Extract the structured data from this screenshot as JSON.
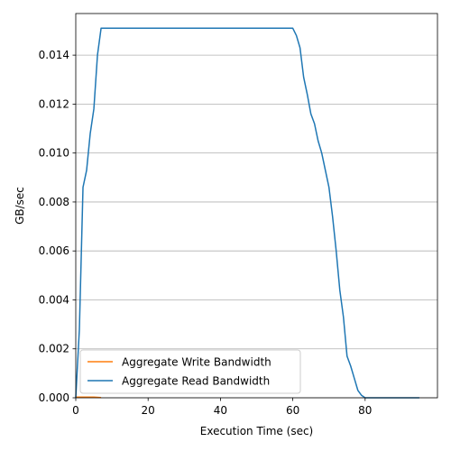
{
  "chart_data": {
    "type": "line",
    "title": "",
    "xlabel": "Execution Time (sec)",
    "ylabel": "GB/sec",
    "xlim": [
      0,
      100
    ],
    "ylim": [
      0,
      0.0157
    ],
    "xticks": [
      0,
      20,
      40,
      60,
      80
    ],
    "yticks": [
      0.0,
      0.002,
      0.004,
      0.006,
      0.008,
      0.01,
      0.012,
      0.014
    ],
    "ytick_labels": [
      "0.000",
      "0.002",
      "0.004",
      "0.006",
      "0.008",
      "0.010",
      "0.012",
      "0.014"
    ],
    "grid": "y-axis",
    "legend_position": "lower-left",
    "series": [
      {
        "name": "Aggregate Write Bandwidth",
        "color": "#ff7f0e",
        "x": [
          0,
          1,
          2,
          3,
          4,
          5,
          6,
          7
        ],
        "y": [
          3e-05,
          3e-05,
          3e-05,
          3e-05,
          3e-05,
          3e-05,
          2e-05,
          1e-05
        ]
      },
      {
        "name": "Aggregate Read Bandwidth",
        "color": "#1f77b4",
        "x": [
          0,
          1,
          2,
          3,
          4,
          5,
          6,
          7,
          8,
          10,
          20,
          30,
          40,
          50,
          60,
          61,
          62,
          63,
          64,
          65,
          66,
          67,
          68,
          69,
          70,
          71,
          72,
          73,
          74,
          75,
          76,
          77,
          78,
          79,
          80,
          85,
          90,
          95
        ],
        "y": [
          0.0,
          0.0028,
          0.0086,
          0.0093,
          0.0108,
          0.0118,
          0.014,
          0.0151,
          0.0151,
          0.0151,
          0.0151,
          0.0151,
          0.0151,
          0.0151,
          0.0151,
          0.0148,
          0.0143,
          0.0131,
          0.0124,
          0.0116,
          0.0112,
          0.0105,
          0.01,
          0.0093,
          0.0086,
          0.0074,
          0.006,
          0.0044,
          0.0033,
          0.0017,
          0.0013,
          0.0008,
          0.0003,
          0.0001,
          0.0,
          0.0,
          0.0,
          0.0
        ]
      }
    ],
    "legend_order": [
      "Aggregate Write Bandwidth",
      "Aggregate Read Bandwidth"
    ]
  }
}
